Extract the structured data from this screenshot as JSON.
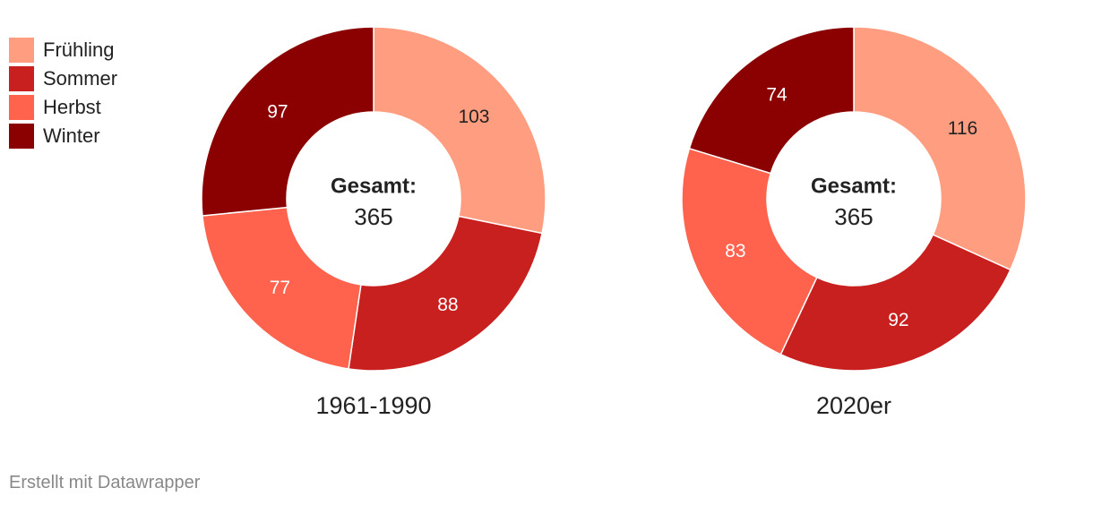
{
  "legend": {
    "position": "top-left",
    "items": [
      {
        "label": "Frühling",
        "color": "#FF9D80"
      },
      {
        "label": "Sommer",
        "color": "#C8201F"
      },
      {
        "label": "Herbst",
        "color": "#FF624D"
      },
      {
        "label": "Winter",
        "color": "#8B0000"
      }
    ]
  },
  "chart_data": [
    {
      "type": "pie",
      "variant": "donut",
      "caption": "1961-1990",
      "center_label": "Gesamt:",
      "center_value": "365",
      "categories": [
        "Frühling",
        "Sommer",
        "Herbst",
        "Winter"
      ],
      "values": [
        103,
        88,
        77,
        97
      ]
    },
    {
      "type": "pie",
      "variant": "donut",
      "caption": "2020er",
      "center_label": "Gesamt:",
      "center_value": "365",
      "categories": [
        "Frühling",
        "Sommer",
        "Herbst",
        "Winter"
      ],
      "values": [
        116,
        92,
        83,
        74
      ]
    }
  ],
  "footer": {
    "credit": "Erstellt mit Datawrapper"
  }
}
